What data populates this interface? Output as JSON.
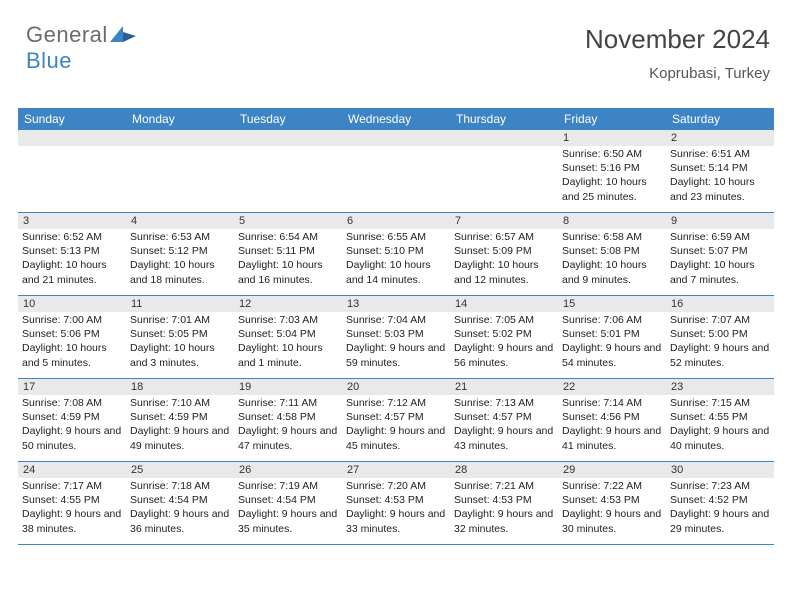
{
  "brand": {
    "general": "General",
    "blue": "Blue"
  },
  "header": {
    "month": "November 2024",
    "location": "Koprubasi, Turkey"
  },
  "colors": {
    "header_bg": "#3d84c4",
    "header_text": "#ffffff",
    "daynum_bg": "#e9e9e9",
    "week_border": "#3d84c4",
    "logo_general": "#6b6b6b",
    "logo_blue": "#3d84c4",
    "body_text": "#222222",
    "background": "#ffffff"
  },
  "day_labels": [
    "Sunday",
    "Monday",
    "Tuesday",
    "Wednesday",
    "Thursday",
    "Friday",
    "Saturday"
  ],
  "weeks": [
    [
      {
        "n": "",
        "sunrise": "",
        "sunset": "",
        "daylight": ""
      },
      {
        "n": "",
        "sunrise": "",
        "sunset": "",
        "daylight": ""
      },
      {
        "n": "",
        "sunrise": "",
        "sunset": "",
        "daylight": ""
      },
      {
        "n": "",
        "sunrise": "",
        "sunset": "",
        "daylight": ""
      },
      {
        "n": "",
        "sunrise": "",
        "sunset": "",
        "daylight": ""
      },
      {
        "n": "1",
        "sunrise": "Sunrise: 6:50 AM",
        "sunset": "Sunset: 5:16 PM",
        "daylight": "Daylight: 10 hours and 25 minutes."
      },
      {
        "n": "2",
        "sunrise": "Sunrise: 6:51 AM",
        "sunset": "Sunset: 5:14 PM",
        "daylight": "Daylight: 10 hours and 23 minutes."
      }
    ],
    [
      {
        "n": "3",
        "sunrise": "Sunrise: 6:52 AM",
        "sunset": "Sunset: 5:13 PM",
        "daylight": "Daylight: 10 hours and 21 minutes."
      },
      {
        "n": "4",
        "sunrise": "Sunrise: 6:53 AM",
        "sunset": "Sunset: 5:12 PM",
        "daylight": "Daylight: 10 hours and 18 minutes."
      },
      {
        "n": "5",
        "sunrise": "Sunrise: 6:54 AM",
        "sunset": "Sunset: 5:11 PM",
        "daylight": "Daylight: 10 hours and 16 minutes."
      },
      {
        "n": "6",
        "sunrise": "Sunrise: 6:55 AM",
        "sunset": "Sunset: 5:10 PM",
        "daylight": "Daylight: 10 hours and 14 minutes."
      },
      {
        "n": "7",
        "sunrise": "Sunrise: 6:57 AM",
        "sunset": "Sunset: 5:09 PM",
        "daylight": "Daylight: 10 hours and 12 minutes."
      },
      {
        "n": "8",
        "sunrise": "Sunrise: 6:58 AM",
        "sunset": "Sunset: 5:08 PM",
        "daylight": "Daylight: 10 hours and 9 minutes."
      },
      {
        "n": "9",
        "sunrise": "Sunrise: 6:59 AM",
        "sunset": "Sunset: 5:07 PM",
        "daylight": "Daylight: 10 hours and 7 minutes."
      }
    ],
    [
      {
        "n": "10",
        "sunrise": "Sunrise: 7:00 AM",
        "sunset": "Sunset: 5:06 PM",
        "daylight": "Daylight: 10 hours and 5 minutes."
      },
      {
        "n": "11",
        "sunrise": "Sunrise: 7:01 AM",
        "sunset": "Sunset: 5:05 PM",
        "daylight": "Daylight: 10 hours and 3 minutes."
      },
      {
        "n": "12",
        "sunrise": "Sunrise: 7:03 AM",
        "sunset": "Sunset: 5:04 PM",
        "daylight": "Daylight: 10 hours and 1 minute."
      },
      {
        "n": "13",
        "sunrise": "Sunrise: 7:04 AM",
        "sunset": "Sunset: 5:03 PM",
        "daylight": "Daylight: 9 hours and 59 minutes."
      },
      {
        "n": "14",
        "sunrise": "Sunrise: 7:05 AM",
        "sunset": "Sunset: 5:02 PM",
        "daylight": "Daylight: 9 hours and 56 minutes."
      },
      {
        "n": "15",
        "sunrise": "Sunrise: 7:06 AM",
        "sunset": "Sunset: 5:01 PM",
        "daylight": "Daylight: 9 hours and 54 minutes."
      },
      {
        "n": "16",
        "sunrise": "Sunrise: 7:07 AM",
        "sunset": "Sunset: 5:00 PM",
        "daylight": "Daylight: 9 hours and 52 minutes."
      }
    ],
    [
      {
        "n": "17",
        "sunrise": "Sunrise: 7:08 AM",
        "sunset": "Sunset: 4:59 PM",
        "daylight": "Daylight: 9 hours and 50 minutes."
      },
      {
        "n": "18",
        "sunrise": "Sunrise: 7:10 AM",
        "sunset": "Sunset: 4:59 PM",
        "daylight": "Daylight: 9 hours and 49 minutes."
      },
      {
        "n": "19",
        "sunrise": "Sunrise: 7:11 AM",
        "sunset": "Sunset: 4:58 PM",
        "daylight": "Daylight: 9 hours and 47 minutes."
      },
      {
        "n": "20",
        "sunrise": "Sunrise: 7:12 AM",
        "sunset": "Sunset: 4:57 PM",
        "daylight": "Daylight: 9 hours and 45 minutes."
      },
      {
        "n": "21",
        "sunrise": "Sunrise: 7:13 AM",
        "sunset": "Sunset: 4:57 PM",
        "daylight": "Daylight: 9 hours and 43 minutes."
      },
      {
        "n": "22",
        "sunrise": "Sunrise: 7:14 AM",
        "sunset": "Sunset: 4:56 PM",
        "daylight": "Daylight: 9 hours and 41 minutes."
      },
      {
        "n": "23",
        "sunrise": "Sunrise: 7:15 AM",
        "sunset": "Sunset: 4:55 PM",
        "daylight": "Daylight: 9 hours and 40 minutes."
      }
    ],
    [
      {
        "n": "24",
        "sunrise": "Sunrise: 7:17 AM",
        "sunset": "Sunset: 4:55 PM",
        "daylight": "Daylight: 9 hours and 38 minutes."
      },
      {
        "n": "25",
        "sunrise": "Sunrise: 7:18 AM",
        "sunset": "Sunset: 4:54 PM",
        "daylight": "Daylight: 9 hours and 36 minutes."
      },
      {
        "n": "26",
        "sunrise": "Sunrise: 7:19 AM",
        "sunset": "Sunset: 4:54 PM",
        "daylight": "Daylight: 9 hours and 35 minutes."
      },
      {
        "n": "27",
        "sunrise": "Sunrise: 7:20 AM",
        "sunset": "Sunset: 4:53 PM",
        "daylight": "Daylight: 9 hours and 33 minutes."
      },
      {
        "n": "28",
        "sunrise": "Sunrise: 7:21 AM",
        "sunset": "Sunset: 4:53 PM",
        "daylight": "Daylight: 9 hours and 32 minutes."
      },
      {
        "n": "29",
        "sunrise": "Sunrise: 7:22 AM",
        "sunset": "Sunset: 4:53 PM",
        "daylight": "Daylight: 9 hours and 30 minutes."
      },
      {
        "n": "30",
        "sunrise": "Sunrise: 7:23 AM",
        "sunset": "Sunset: 4:52 PM",
        "daylight": "Daylight: 9 hours and 29 minutes."
      }
    ]
  ]
}
